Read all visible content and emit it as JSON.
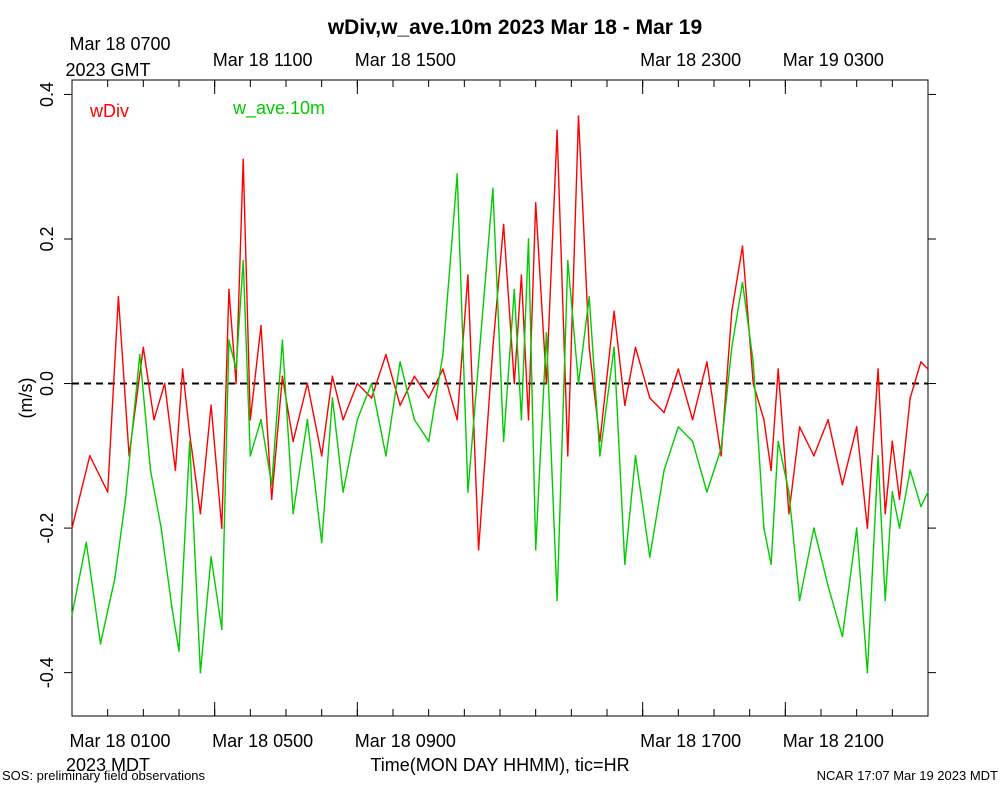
{
  "chart_data": {
    "type": "line",
    "title": "wDiv,w_ave.10m 2023 Mar 18 - Mar 19",
    "ylabel": "(m/s)",
    "xlabel": "Time(MON DAY HHMM), tic=HR",
    "ylim": [
      -0.46,
      0.42
    ],
    "xlim": [
      0,
      24
    ],
    "y_ticks": [
      -0.4,
      -0.2,
      0.0,
      0.2,
      0.4
    ],
    "y_tick_labels": [
      "-0.4",
      "-0.2",
      "0.0",
      "0.2",
      "0.4"
    ],
    "x_minor_ticks": [
      0,
      1,
      2,
      3,
      4,
      5,
      6,
      7,
      8,
      9,
      10,
      11,
      12,
      13,
      14,
      15,
      16,
      17,
      18,
      19,
      20,
      21,
      22,
      23,
      24
    ],
    "x_major_labels_bottom": [
      {
        "x": 0,
        "label": "Mar 18 0100"
      },
      {
        "x": 4,
        "label": "Mar 18 0500"
      },
      {
        "x": 8,
        "label": "Mar 18 0900"
      },
      {
        "x": 16,
        "label": "Mar 18 1700"
      },
      {
        "x": 20,
        "label": "Mar 18 2100"
      }
    ],
    "x_major_labels_top": [
      {
        "x": 0,
        "label": "Mar 18 0700"
      },
      {
        "x": 4,
        "label": "Mar 18 1100"
      },
      {
        "x": 8,
        "label": "Mar 18 1500"
      },
      {
        "x": 16,
        "label": "Mar 18 2300"
      },
      {
        "x": 20,
        "label": "Mar 19 0300"
      }
    ],
    "top_tz_label": "2023 GMT",
    "bottom_tz_label": "2023 MDT",
    "zero_line": true,
    "series": [
      {
        "name": "wDiv",
        "color": "#ff0000",
        "x": [
          0.0,
          0.5,
          1.0,
          1.3,
          1.6,
          2.0,
          2.3,
          2.6,
          2.9,
          3.1,
          3.3,
          3.6,
          3.9,
          4.2,
          4.4,
          4.6,
          4.8,
          5.0,
          5.3,
          5.6,
          5.9,
          6.2,
          6.6,
          7.0,
          7.3,
          7.6,
          8.0,
          8.4,
          8.8,
          9.2,
          9.6,
          10.0,
          10.4,
          10.8,
          11.1,
          11.4,
          11.8,
          12.1,
          12.4,
          12.6,
          12.8,
          13.0,
          13.3,
          13.6,
          13.9,
          14.2,
          14.5,
          14.8,
          15.2,
          15.5,
          15.8,
          16.2,
          16.6,
          17.0,
          17.4,
          17.8,
          18.2,
          18.5,
          18.8,
          19.1,
          19.4,
          19.6,
          19.8,
          20.1,
          20.4,
          20.8,
          21.2,
          21.6,
          22.0,
          22.3,
          22.6,
          22.8,
          23.0,
          23.2,
          23.5,
          23.8,
          24.0
        ],
        "values": [
          -0.2,
          -0.1,
          -0.15,
          0.12,
          -0.1,
          0.05,
          -0.05,
          0.0,
          -0.12,
          0.02,
          -0.07,
          -0.18,
          -0.03,
          -0.2,
          0.13,
          0.0,
          0.31,
          -0.05,
          0.08,
          -0.16,
          0.01,
          -0.08,
          0.0,
          -0.1,
          0.01,
          -0.05,
          0.0,
          -0.02,
          0.04,
          -0.03,
          0.01,
          -0.02,
          0.02,
          -0.05,
          0.15,
          -0.23,
          0.05,
          0.22,
          0.0,
          0.15,
          -0.05,
          0.25,
          0.0,
          0.35,
          -0.1,
          0.37,
          0.05,
          -0.08,
          0.1,
          -0.03,
          0.05,
          -0.02,
          -0.04,
          0.02,
          -0.05,
          0.03,
          -0.1,
          0.1,
          0.19,
          0.0,
          -0.05,
          -0.12,
          0.02,
          -0.18,
          -0.06,
          -0.1,
          -0.05,
          -0.14,
          -0.06,
          -0.2,
          0.02,
          -0.18,
          -0.08,
          -0.16,
          -0.02,
          0.03,
          0.02
        ]
      },
      {
        "name": "w_ave.10m",
        "color": "#00cc00",
        "x": [
          0.0,
          0.4,
          0.8,
          1.2,
          1.5,
          1.9,
          2.2,
          2.5,
          2.8,
          3.0,
          3.3,
          3.6,
          3.9,
          4.2,
          4.4,
          4.6,
          4.8,
          5.0,
          5.3,
          5.6,
          5.9,
          6.2,
          6.6,
          7.0,
          7.3,
          7.6,
          8.0,
          8.4,
          8.8,
          9.2,
          9.6,
          10.0,
          10.4,
          10.8,
          11.1,
          11.4,
          11.8,
          12.1,
          12.4,
          12.6,
          12.8,
          13.0,
          13.3,
          13.6,
          13.9,
          14.2,
          14.5,
          14.8,
          15.2,
          15.5,
          15.8,
          16.2,
          16.6,
          17.0,
          17.4,
          17.8,
          18.2,
          18.5,
          18.8,
          19.1,
          19.4,
          19.6,
          19.8,
          20.1,
          20.4,
          20.8,
          21.2,
          21.6,
          22.0,
          22.3,
          22.6,
          22.8,
          23.0,
          23.2,
          23.5,
          23.8,
          24.0
        ],
        "values": [
          -0.32,
          -0.22,
          -0.36,
          -0.27,
          -0.16,
          0.04,
          -0.12,
          -0.2,
          -0.31,
          -0.37,
          -0.08,
          -0.4,
          -0.24,
          -0.34,
          0.06,
          0.02,
          0.17,
          -0.1,
          -0.05,
          -0.14,
          0.06,
          -0.18,
          -0.05,
          -0.22,
          -0.02,
          -0.15,
          -0.05,
          0.0,
          -0.1,
          0.03,
          -0.05,
          -0.08,
          0.04,
          0.29,
          -0.15,
          0.03,
          0.27,
          -0.08,
          0.13,
          -0.05,
          0.2,
          -0.23,
          0.07,
          -0.3,
          0.17,
          0.0,
          0.12,
          -0.1,
          0.05,
          -0.25,
          -0.1,
          -0.24,
          -0.12,
          -0.06,
          -0.08,
          -0.15,
          -0.09,
          0.05,
          0.14,
          0.03,
          -0.2,
          -0.25,
          -0.08,
          -0.15,
          -0.3,
          -0.2,
          -0.28,
          -0.35,
          -0.2,
          -0.4,
          -0.1,
          -0.3,
          -0.15,
          -0.2,
          -0.12,
          -0.17,
          -0.15
        ]
      }
    ],
    "legend": [
      {
        "label": "wDiv",
        "color": "#ff0000"
      },
      {
        "label": "w_ave.10m",
        "color": "#00cc00"
      }
    ]
  },
  "footer": {
    "left": "SOS: preliminary field observations",
    "right": "NCAR 17:07 Mar 19 2023 MDT"
  }
}
